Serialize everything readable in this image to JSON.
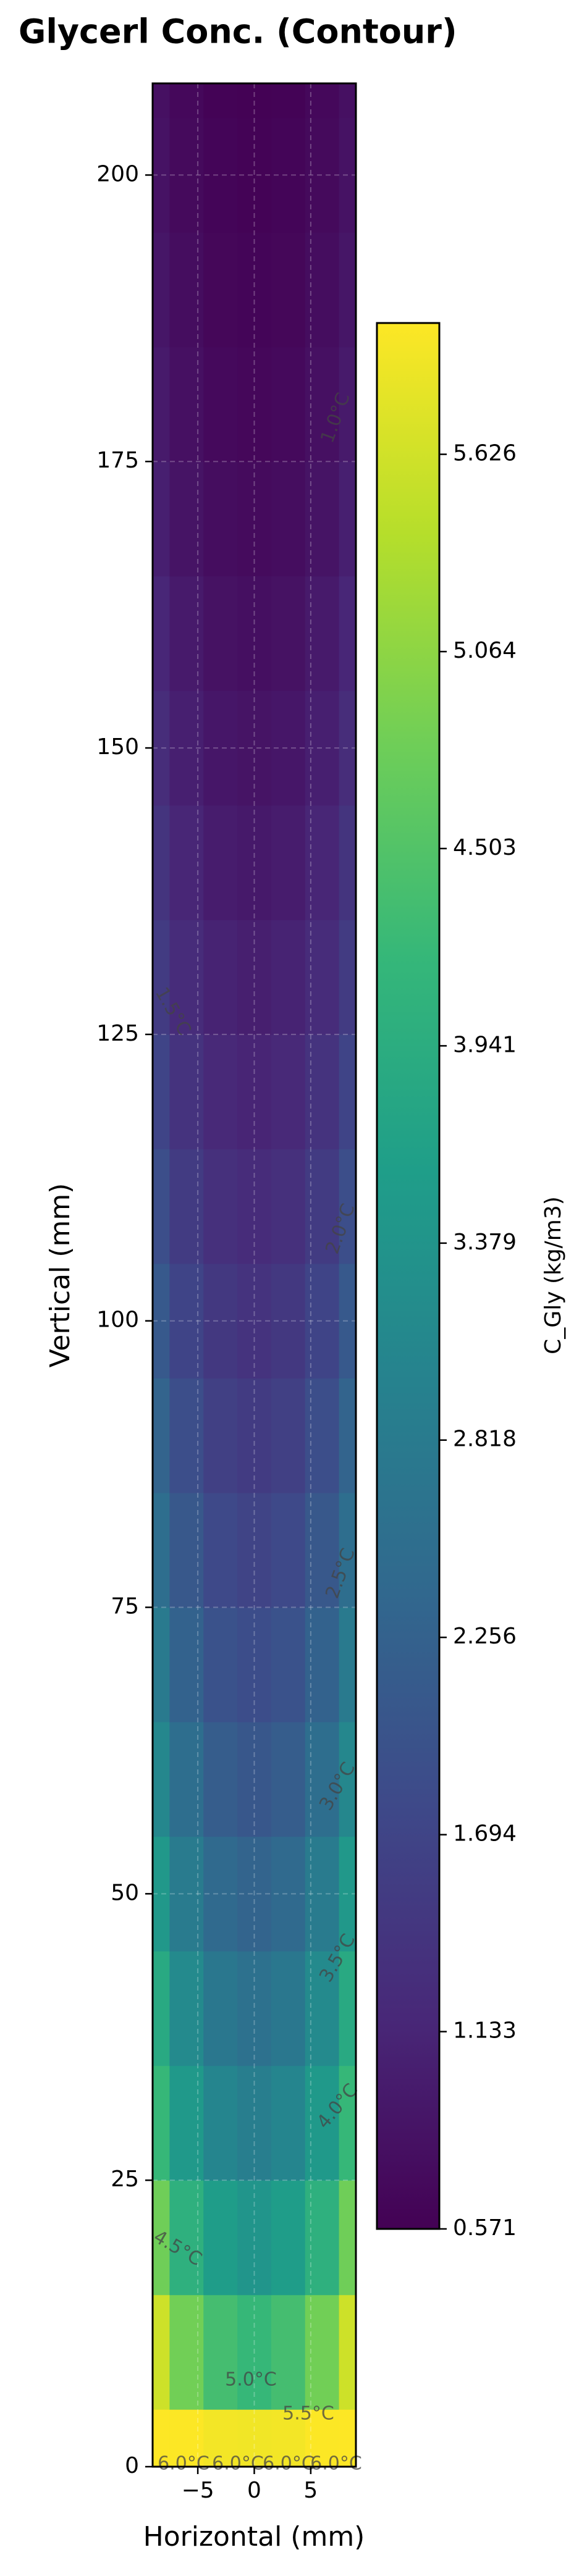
{
  "chart_data": {
    "type": "contour",
    "title": "Glycerl Conc. (Contour)",
    "x_label": "Horizontal (mm)",
    "y_label": "Vertical (mm)",
    "xlim": [
      -9,
      9
    ],
    "ylim": [
      0,
      208
    ],
    "xticks": [
      {
        "value": -5,
        "label": "−5"
      },
      0,
      5
    ],
    "yticks": [
      0,
      25,
      50,
      75,
      100,
      125,
      150,
      175,
      200
    ],
    "grid": true,
    "x": [
      -9,
      -6,
      -3,
      0,
      3,
      6,
      9
    ],
    "y": [
      0,
      10,
      20,
      30,
      40,
      50,
      60,
      70,
      80,
      90,
      100,
      110,
      120,
      130,
      140,
      150,
      160,
      170,
      180,
      190,
      200,
      210
    ],
    "z": [
      [
        6.1,
        5.99,
        5.92,
        5.9,
        5.92,
        5.99,
        6.1
      ],
      [
        5.6,
        4.82,
        4.36,
        4.2,
        4.36,
        4.82,
        5.6
      ],
      [
        4.8,
        4.02,
        3.56,
        3.4,
        3.56,
        4.02,
        4.8
      ],
      [
        4.2,
        3.48,
        3.04,
        2.9,
        3.04,
        3.48,
        4.2
      ],
      [
        3.85,
        3.16,
        2.74,
        2.6,
        2.74,
        3.16,
        3.85
      ],
      [
        3.45,
        2.81,
        2.43,
        2.3,
        2.43,
        2.81,
        3.45
      ],
      [
        3.1,
        2.52,
        2.17,
        2.05,
        2.17,
        2.52,
        3.1
      ],
      [
        2.8,
        2.27,
        1.96,
        1.85,
        1.96,
        2.27,
        2.8
      ],
      [
        2.53,
        2.06,
        1.77,
        1.68,
        1.77,
        2.06,
        2.53
      ],
      [
        2.3,
        1.87,
        1.61,
        1.52,
        1.61,
        1.87,
        2.3
      ],
      [
        2.08,
        1.69,
        1.46,
        1.38,
        1.46,
        1.69,
        2.08
      ],
      [
        1.87,
        1.53,
        1.32,
        1.25,
        1.32,
        1.53,
        1.87
      ],
      [
        1.69,
        1.38,
        1.19,
        1.13,
        1.19,
        1.38,
        1.69
      ],
      [
        1.53,
        1.25,
        1.09,
        1.03,
        1.09,
        1.25,
        1.53
      ],
      [
        1.39,
        1.14,
        0.99,
        0.94,
        0.99,
        1.14,
        1.39
      ],
      [
        1.26,
        1.04,
        0.9,
        0.86,
        0.9,
        1.04,
        1.26
      ],
      [
        1.15,
        0.95,
        0.83,
        0.79,
        0.83,
        0.95,
        1.15
      ],
      [
        1.04,
        0.86,
        0.76,
        0.72,
        0.76,
        0.86,
        1.04
      ],
      [
        0.96,
        0.8,
        0.7,
        0.67,
        0.7,
        0.8,
        0.96
      ],
      [
        0.89,
        0.75,
        0.66,
        0.63,
        0.66,
        0.75,
        0.89
      ],
      [
        0.84,
        0.71,
        0.63,
        0.6,
        0.63,
        0.71,
        0.84
      ],
      [
        0.8,
        0.68,
        0.6,
        0.58,
        0.6,
        0.68,
        0.8
      ]
    ],
    "colormap": [
      "#440154",
      "#482878",
      "#3e4989",
      "#31688e",
      "#26828e",
      "#1f9e89",
      "#35b779",
      "#6ece58",
      "#b5de2b",
      "#fde725"
    ],
    "colorbar_label": "C_Gly (kg/m3)",
    "clim": [
      0.571,
      6.0
    ],
    "colorbar_ticks": [
      0.571,
      1.133,
      1.694,
      2.256,
      2.818,
      3.379,
      3.941,
      4.503,
      5.064,
      5.626
    ],
    "contour_labels": [
      "1.0°C",
      "1.5°C",
      "2.0°C",
      "2.5°C",
      "3.0°C",
      "3.5°C",
      "4.0°C",
      "4.5°C",
      "5.0°C",
      "5.5°C",
      "6.0°C",
      "6.0°C",
      "6.0°C",
      "6.0°C"
    ]
  }
}
